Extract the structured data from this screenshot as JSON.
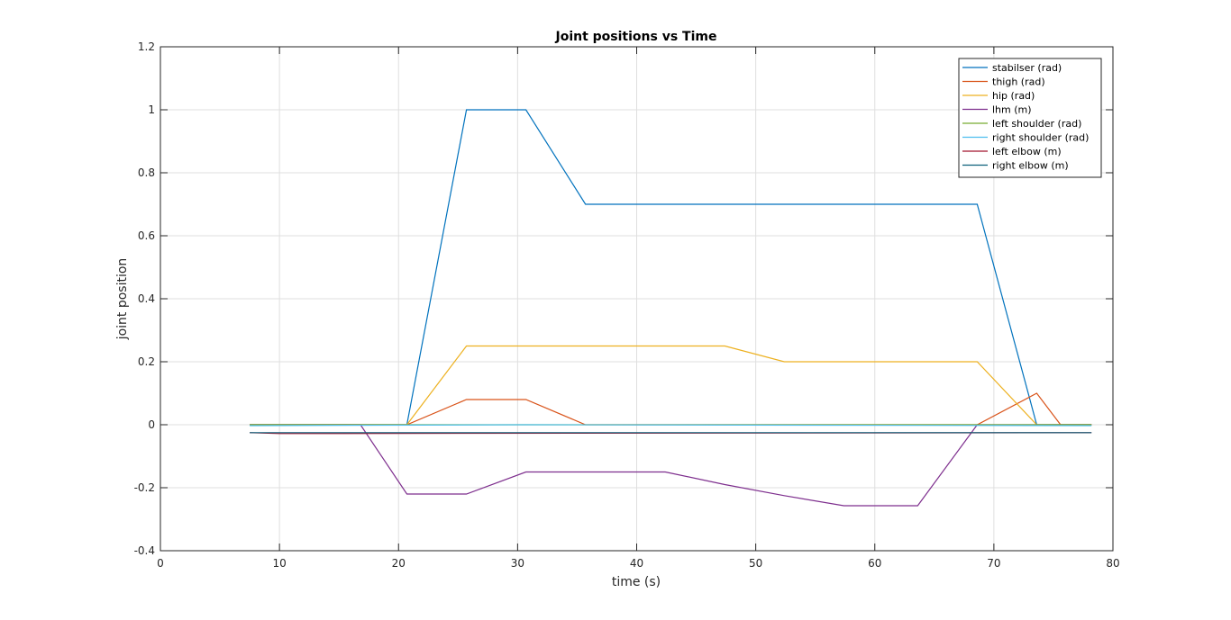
{
  "chart_data": {
    "type": "line",
    "title": "Joint positions vs Time",
    "xlabel": "time (s)",
    "ylabel": "joint position",
    "xlim": [
      0,
      80
    ],
    "ylim": [
      -0.4,
      1.2
    ],
    "xticks": [
      0,
      10,
      20,
      30,
      40,
      50,
      60,
      70,
      80
    ],
    "yticks": [
      -0.4,
      -0.2,
      0,
      0.2,
      0.4,
      0.6,
      0.8,
      1,
      1.2
    ],
    "xtick_labels": [
      "0",
      "10",
      "20",
      "30",
      "40",
      "50",
      "60",
      "70",
      "80"
    ],
    "ytick_labels": [
      "-0.4",
      "-0.2",
      "0",
      "0.2",
      "0.4",
      "0.6",
      "0.8",
      "1",
      "1.2"
    ],
    "grid": true,
    "legend_position": "top-right",
    "series": [
      {
        "name": "stabilser (rad)",
        "color": "#0072BD",
        "x": [
          7.5,
          20.7,
          25.7,
          30.7,
          35.7,
          68.6,
          73.6,
          78.2
        ],
        "y": [
          0,
          0,
          1.0,
          1.0,
          0.7,
          0.7,
          0,
          0
        ]
      },
      {
        "name": "thigh (rad)",
        "color": "#D95319",
        "x": [
          7.5,
          20.7,
          25.7,
          30.7,
          35.7,
          68.6,
          73.6,
          75.6,
          78.2
        ],
        "y": [
          0,
          0,
          0.08,
          0.08,
          0,
          0,
          0.1,
          0,
          0
        ]
      },
      {
        "name": "hip (rad)",
        "color": "#EDB120",
        "x": [
          7.5,
          20.7,
          25.7,
          47.4,
          52.4,
          68.6,
          73.6,
          78.2
        ],
        "y": [
          0,
          0,
          0.25,
          0.25,
          0.2,
          0.2,
          0,
          0
        ]
      },
      {
        "name": "lhm (m)",
        "color": "#7E2F8E",
        "x": [
          7.5,
          16.8,
          20.7,
          25.7,
          30.7,
          42.4,
          47.4,
          52.4,
          57.4,
          63.6,
          68.6,
          78.2
        ],
        "y": [
          0,
          0,
          -0.22,
          -0.22,
          -0.15,
          -0.15,
          -0.19,
          -0.225,
          -0.257,
          -0.257,
          0,
          0
        ]
      },
      {
        "name": "left shoulder (rad)",
        "color": "#77AC30",
        "x": [
          7.5,
          78.2
        ],
        "y": [
          0,
          0
        ]
      },
      {
        "name": "right shoulder (rad)",
        "color": "#4DBEEE",
        "x": [
          7.5,
          30.7,
          78.2
        ],
        "y": [
          -0.003,
          0,
          -0.003
        ]
      },
      {
        "name": "left elbow (m)",
        "color": "#A2142F",
        "x": [
          7.5,
          10.0,
          78.2
        ],
        "y": [
          -0.025,
          -0.028,
          -0.025
        ]
      },
      {
        "name": "right elbow (m)",
        "color": "#0B5F7A",
        "x": [
          7.5,
          78.2
        ],
        "y": [
          -0.025,
          -0.025
        ]
      }
    ]
  }
}
